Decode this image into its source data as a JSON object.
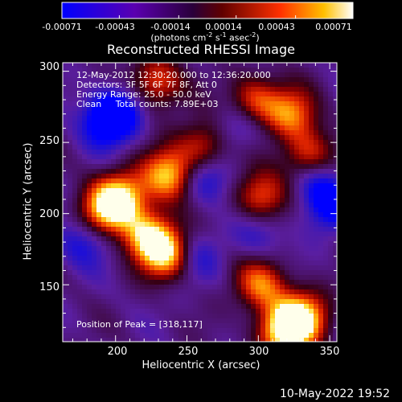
{
  "colorbar": {
    "min": -0.00071,
    "max": 0.00071,
    "tick_labels": [
      "-0.00071",
      "-0.00043",
      "-0.00014",
      "0.00014",
      "0.00043",
      "0.00071"
    ],
    "unit_main": "(photons cm",
    "unit_sup1": "-2",
    "unit_mid": " s",
    "unit_sup2": "-1",
    "unit_end": " asec",
    "unit_sup3": "-2",
    "unit_close": ")"
  },
  "chart_data": {
    "type": "heatmap",
    "title": "Reconstructed RHESSI Image",
    "xlabel": "Heliocentric X (arcsec)",
    "ylabel": "Heliocentric Y (arcsec)",
    "xlim": [
      163,
      355
    ],
    "ylim": [
      110,
      306
    ],
    "xticks": [
      "200",
      "250",
      "300",
      "350"
    ],
    "yticks": [
      "150",
      "200",
      "250",
      "300"
    ],
    "annotations": [
      "12-May-2012 12:30:20.000 to 12:36:20.000",
      "Detectors: 3F 5F 6F 7F 8F, Att 0",
      "Energy Range: 25.0 - 50.0 keV",
      "Clean     Total counts: 7.89E+03"
    ],
    "peak_label": "Position of Peak = [318,117]",
    "peak_position": [
      318,
      117
    ],
    "colormap": "RHESSI blue-purple-red-yellow",
    "bright_sources": [
      {
        "x": 205,
        "y": 212,
        "level": 0.75
      },
      {
        "x": 238,
        "y": 227,
        "level": 0.9
      },
      {
        "x": 236,
        "y": 172,
        "level": 0.88
      },
      {
        "x": 222,
        "y": 185,
        "level": 0.7
      },
      {
        "x": 192,
        "y": 202,
        "level": 0.65
      },
      {
        "x": 318,
        "y": 117,
        "level": 1.0
      },
      {
        "x": 332,
        "y": 128,
        "level": 0.75
      },
      {
        "x": 302,
        "y": 150,
        "level": 0.6
      },
      {
        "x": 296,
        "y": 278,
        "level": 0.62
      },
      {
        "x": 323,
        "y": 270,
        "level": 0.58
      },
      {
        "x": 335,
        "y": 240,
        "level": 0.55
      },
      {
        "x": 228,
        "y": 292,
        "level": 0.55
      },
      {
        "x": 262,
        "y": 247,
        "level": 0.5
      },
      {
        "x": 302,
        "y": 212,
        "level": 0.6
      }
    ],
    "dark_sources": [
      {
        "x": 193,
        "y": 265,
        "level": -0.95
      },
      {
        "x": 203,
        "y": 272,
        "level": -0.8
      },
      {
        "x": 262,
        "y": 225,
        "level": -0.9
      },
      {
        "x": 287,
        "y": 262,
        "level": -0.75
      },
      {
        "x": 350,
        "y": 205,
        "level": -0.85
      },
      {
        "x": 340,
        "y": 223,
        "level": -0.75
      },
      {
        "x": 177,
        "y": 180,
        "level": -0.7
      },
      {
        "x": 255,
        "y": 170,
        "level": -0.6
      },
      {
        "x": 300,
        "y": 186,
        "level": -0.55
      }
    ]
  },
  "footer": {
    "timestamp": "10-May-2022 19:52"
  }
}
